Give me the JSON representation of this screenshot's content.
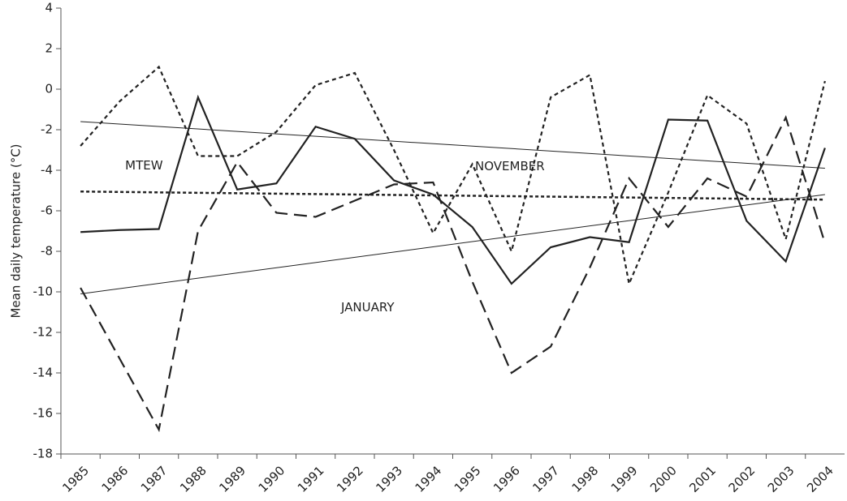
{
  "chart_data": {
    "type": "line",
    "y_label": "Mean daily temperature (°C)",
    "categories": [
      "1985",
      "1986",
      "1987",
      "1988",
      "1989",
      "1990",
      "1991",
      "1992",
      "1993",
      "1994",
      "1995",
      "1996",
      "1997",
      "1998",
      "1999",
      "2000",
      "2001",
      "2002",
      "2003",
      "2004"
    ],
    "series": [
      {
        "color": "#222",
        "dash": "solid",
        "values": [
          -7.05,
          -6.95,
          -6.9,
          -0.4,
          -4.95,
          -4.65,
          -1.85,
          -2.45,
          -4.5,
          -5.2,
          -6.8,
          -9.6,
          -7.8,
          -7.3,
          -7.55,
          -1.5,
          -1.55,
          -6.5,
          -8.5,
          -2.9
        ]
      },
      {
        "color": "#222",
        "dash": "dashed",
        "values": [
          -9.8,
          -13.3,
          -16.8,
          -7,
          -3.6,
          -6.1,
          -6.3,
          -5.5,
          -4.7,
          -4.6,
          -9.5,
          -14,
          -12.7,
          -8.8,
          -4.4,
          -6.8,
          -4.4,
          -5.3,
          -1.4,
          -7.6
        ]
      },
      {
        "color": "#222",
        "dash": "dotted",
        "values": [
          -2.8,
          -0.6,
          1.1,
          -3.3,
          -3.3,
          -2.1,
          0.2,
          0.8,
          -3,
          -7.1,
          -3.7,
          -8,
          -0.4,
          0.7,
          -9.6,
          -5.1,
          -0.3,
          -1.7,
          -7.4,
          0.4
        ]
      }
    ],
    "trendlines": [
      {
        "label": "NOVEMBER",
        "dash": "solid",
        "values": [
          -1.6,
          -3.9
        ]
      },
      {
        "label": "MTEW",
        "dash": "dotted-bold",
        "values": [
          -5.05,
          -5.45
        ]
      },
      {
        "label": "JANUARY",
        "dash": "solid",
        "values": [
          -10.1,
          -5.2
        ]
      }
    ],
    "ylim": [
      -18,
      4
    ],
    "yticks": [
      -18,
      -16,
      -14,
      -12,
      -10,
      -8,
      -6,
      -4,
      -2,
      0,
      2,
      4
    ]
  }
}
